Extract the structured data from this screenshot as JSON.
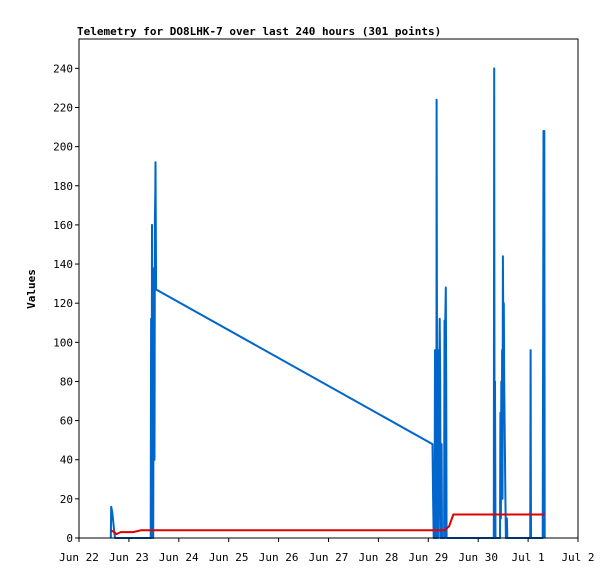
{
  "chart_data": {
    "type": "line",
    "title": "Telemetry for DO8LHK-7 over last 240 hours (301 points)",
    "ylabel": "Values",
    "xlabel": "",
    "ylim": [
      0,
      255
    ],
    "xlim": [
      0,
      240
    ],
    "grid": false,
    "x_ticks": [
      {
        "x": 0,
        "label": "Jun 22"
      },
      {
        "x": 24,
        "label": "Jun 23"
      },
      {
        "x": 48,
        "label": "Jun 24"
      },
      {
        "x": 72,
        "label": "Jun 25"
      },
      {
        "x": 96,
        "label": "Jun 26"
      },
      {
        "x": 120,
        "label": "Jun 27"
      },
      {
        "x": 144,
        "label": "Jun 28"
      },
      {
        "x": 168,
        "label": "Jun 29"
      },
      {
        "x": 192,
        "label": "Jun 30"
      },
      {
        "x": 216,
        "label": "Jul 1"
      },
      {
        "x": 240,
        "label": "Jul 2"
      }
    ],
    "y_ticks": [
      0,
      20,
      40,
      60,
      80,
      100,
      120,
      140,
      160,
      180,
      200,
      220,
      240
    ],
    "series": [
      {
        "color": "#0066cc",
        "points": [
          [
            15.3,
            0
          ],
          [
            15.5,
            16
          ],
          [
            16,
            13
          ],
          [
            16.5,
            8
          ],
          [
            17,
            3
          ],
          [
            17.3,
            0
          ],
          [
            34.5,
            0
          ],
          [
            34.7,
            112
          ],
          [
            34.9,
            0
          ],
          [
            35.1,
            160
          ],
          [
            35.3,
            40
          ],
          [
            35.5,
            60
          ],
          [
            35.7,
            0
          ],
          [
            35.9,
            88
          ],
          [
            36.1,
            138
          ],
          [
            36.3,
            40
          ],
          [
            36.5,
            163
          ],
          [
            36.7,
            176
          ],
          [
            36.8,
            192
          ],
          [
            37.1,
            127
          ],
          [
            170,
            48
          ],
          [
            170.3,
            20
          ],
          [
            170.6,
            0
          ],
          [
            171,
            0
          ],
          [
            171.2,
            96
          ],
          [
            171.4,
            0
          ],
          [
            171.7,
            60
          ],
          [
            171.9,
            0
          ],
          [
            172,
            224
          ],
          [
            172.2,
            96
          ],
          [
            172.4,
            20
          ],
          [
            172.6,
            96
          ],
          [
            172.8,
            0
          ],
          [
            173.1,
            30
          ],
          [
            173.3,
            85
          ],
          [
            173.5,
            112
          ],
          [
            173.7,
            80
          ],
          [
            173.9,
            0
          ],
          [
            174.2,
            20
          ],
          [
            174.4,
            48
          ],
          [
            174.6,
            0
          ],
          [
            175.6,
            0
          ],
          [
            175.8,
            111
          ],
          [
            176,
            0
          ],
          [
            176.2,
            112
          ],
          [
            176.4,
            128
          ],
          [
            176.6,
            80
          ],
          [
            176.8,
            0
          ],
          [
            199.5,
            0
          ],
          [
            199.7,
            240
          ],
          [
            199.9,
            0
          ],
          [
            200.1,
            80
          ],
          [
            200.3,
            0
          ],
          [
            201,
            0
          ],
          [
            202.5,
            0
          ],
          [
            202.7,
            64
          ],
          [
            202.9,
            10
          ],
          [
            203.1,
            80
          ],
          [
            203.3,
            20
          ],
          [
            203.5,
            96
          ],
          [
            203.7,
            20
          ],
          [
            203.9,
            144
          ],
          [
            204.1,
            96
          ],
          [
            204.3,
            120
          ],
          [
            204.5,
            80
          ],
          [
            204.7,
            60
          ],
          [
            204.9,
            40
          ],
          [
            205.1,
            20
          ],
          [
            205.3,
            0
          ],
          [
            205.6,
            0
          ],
          [
            205.8,
            10
          ],
          [
            206,
            0
          ],
          [
            217,
            0
          ],
          [
            217.2,
            96
          ],
          [
            217.4,
            0
          ],
          [
            223,
            0
          ],
          [
            223.2,
            96
          ],
          [
            223.4,
            208
          ],
          [
            223.6,
            96
          ],
          [
            223.8,
            208
          ],
          [
            224,
            0
          ]
        ]
      },
      {
        "color": "#dd0000",
        "points": [
          [
            15.3,
            4
          ],
          [
            17,
            3
          ],
          [
            18,
            2
          ],
          [
            20,
            3
          ],
          [
            24,
            3
          ],
          [
            26,
            3
          ],
          [
            30,
            4
          ],
          [
            35,
            4
          ],
          [
            40,
            4
          ],
          [
            80,
            4
          ],
          [
            120,
            4
          ],
          [
            160,
            4
          ],
          [
            176,
            4
          ],
          [
            178,
            6
          ],
          [
            180,
            12
          ],
          [
            186,
            12
          ],
          [
            200,
            12
          ],
          [
            210,
            12
          ],
          [
            224,
            12
          ]
        ]
      }
    ]
  }
}
